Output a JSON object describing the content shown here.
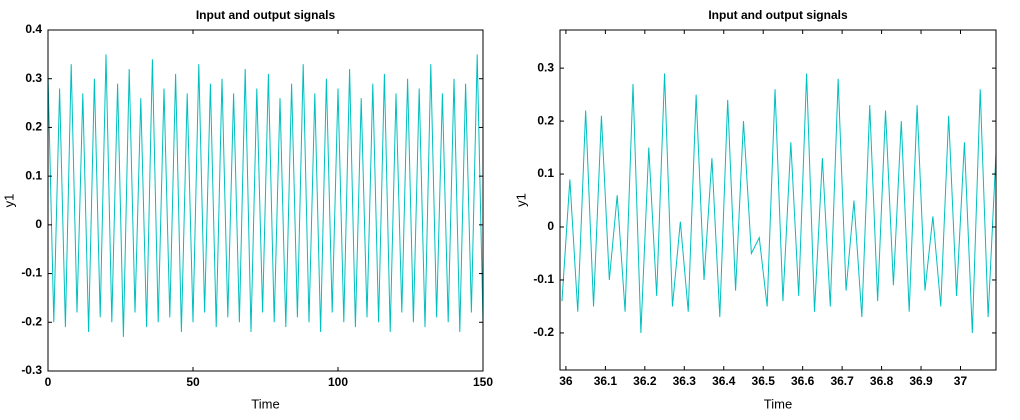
{
  "chart_data": [
    {
      "type": "line",
      "title": "Input and output signals",
      "x_label": "Time",
      "y_label": "y1",
      "xlim": [
        0,
        150
      ],
      "xticks": [
        0,
        50,
        100,
        150
      ],
      "ylim": [
        -0.3,
        0.4
      ],
      "yticks": [
        -0.3,
        -0.2,
        -0.1,
        0,
        0.1,
        0.2,
        0.3,
        0.4
      ],
      "x": [
        0,
        2,
        4,
        6,
        8,
        10,
        12,
        14,
        16,
        18,
        20,
        22,
        24,
        26,
        28,
        30,
        32,
        34,
        36,
        38,
        40,
        42,
        44,
        46,
        48,
        50,
        52,
        54,
        56,
        58,
        60,
        62,
        64,
        66,
        68,
        70,
        72,
        74,
        76,
        78,
        80,
        82,
        84,
        86,
        88,
        90,
        92,
        94,
        96,
        98,
        100,
        102,
        104,
        106,
        108,
        110,
        112,
        114,
        116,
        118,
        120,
        122,
        124,
        126,
        128,
        130,
        132,
        134,
        136,
        138,
        140,
        142,
        144,
        146,
        148,
        150
      ],
      "series": [
        {
          "color": "#00bfbf",
          "values": [
            0.31,
            -0.2,
            0.28,
            -0.21,
            0.33,
            -0.18,
            0.27,
            -0.22,
            0.3,
            -0.19,
            0.35,
            -0.2,
            0.29,
            -0.23,
            0.32,
            -0.18,
            0.26,
            -0.21,
            0.34,
            -0.2,
            0.28,
            -0.19,
            0.31,
            -0.22,
            0.27,
            -0.2,
            0.33,
            -0.18,
            0.29,
            -0.21,
            0.3,
            -0.19,
            0.27,
            -0.2,
            0.32,
            -0.22,
            0.28,
            -0.18,
            0.31,
            -0.2,
            0.26,
            -0.21,
            0.29,
            -0.19,
            0.33,
            -0.2,
            0.27,
            -0.22,
            0.3,
            -0.18,
            0.28,
            -0.2,
            0.32,
            -0.21,
            0.26,
            -0.19,
            0.29,
            -0.2,
            0.31,
            -0.22,
            0.27,
            -0.18,
            0.3,
            -0.2,
            0.28,
            -0.21,
            0.33,
            -0.19,
            0.27,
            -0.2,
            0.3,
            -0.22,
            0.29,
            -0.18,
            0.35,
            -0.2
          ]
        }
      ]
    },
    {
      "type": "line",
      "title": "Input and output signals",
      "x_label": "Time",
      "y_label": "y1",
      "xlim": [
        35.985,
        37.09
      ],
      "xticks": [
        36,
        36.1,
        36.2,
        36.3,
        36.4,
        36.5,
        36.6,
        36.7,
        36.8,
        36.9,
        37
      ],
      "ylim": [
        -0.27,
        0.372
      ],
      "yticks": [
        -0.2,
        -0.1,
        0,
        0.1,
        0.2,
        0.3
      ],
      "x": [
        35.99,
        36.01,
        36.03,
        36.05,
        36.07,
        36.09,
        36.11,
        36.13,
        36.15,
        36.17,
        36.19,
        36.21,
        36.23,
        36.25,
        36.27,
        36.29,
        36.31,
        36.33,
        36.35,
        36.37,
        36.39,
        36.41,
        36.43,
        36.45,
        36.47,
        36.49,
        36.51,
        36.53,
        36.55,
        36.57,
        36.59,
        36.61,
        36.63,
        36.65,
        36.67,
        36.69,
        36.71,
        36.73,
        36.75,
        36.77,
        36.79,
        36.81,
        36.83,
        36.85,
        36.87,
        36.89,
        36.91,
        36.93,
        36.95,
        36.97,
        36.99,
        37.01,
        37.03,
        37.05,
        37.07,
        37.09
      ],
      "series": [
        {
          "color": "#00bfbf",
          "values": [
            -0.14,
            0.09,
            -0.16,
            0.22,
            -0.15,
            0.21,
            -0.1,
            0.06,
            -0.16,
            0.27,
            -0.2,
            0.15,
            -0.13,
            0.29,
            -0.15,
            0.01,
            -0.16,
            0.25,
            -0.1,
            0.13,
            -0.17,
            0.24,
            -0.12,
            0.2,
            -0.05,
            -0.02,
            -0.15,
            0.26,
            -0.14,
            0.16,
            -0.13,
            0.29,
            -0.16,
            0.13,
            -0.15,
            0.28,
            -0.12,
            0.05,
            -0.17,
            0.23,
            -0.14,
            0.22,
            -0.11,
            0.2,
            -0.16,
            0.23,
            -0.12,
            0.02,
            -0.15,
            0.21,
            -0.13,
            0.16,
            -0.2,
            0.26,
            -0.17,
            0.14
          ]
        }
      ]
    }
  ]
}
